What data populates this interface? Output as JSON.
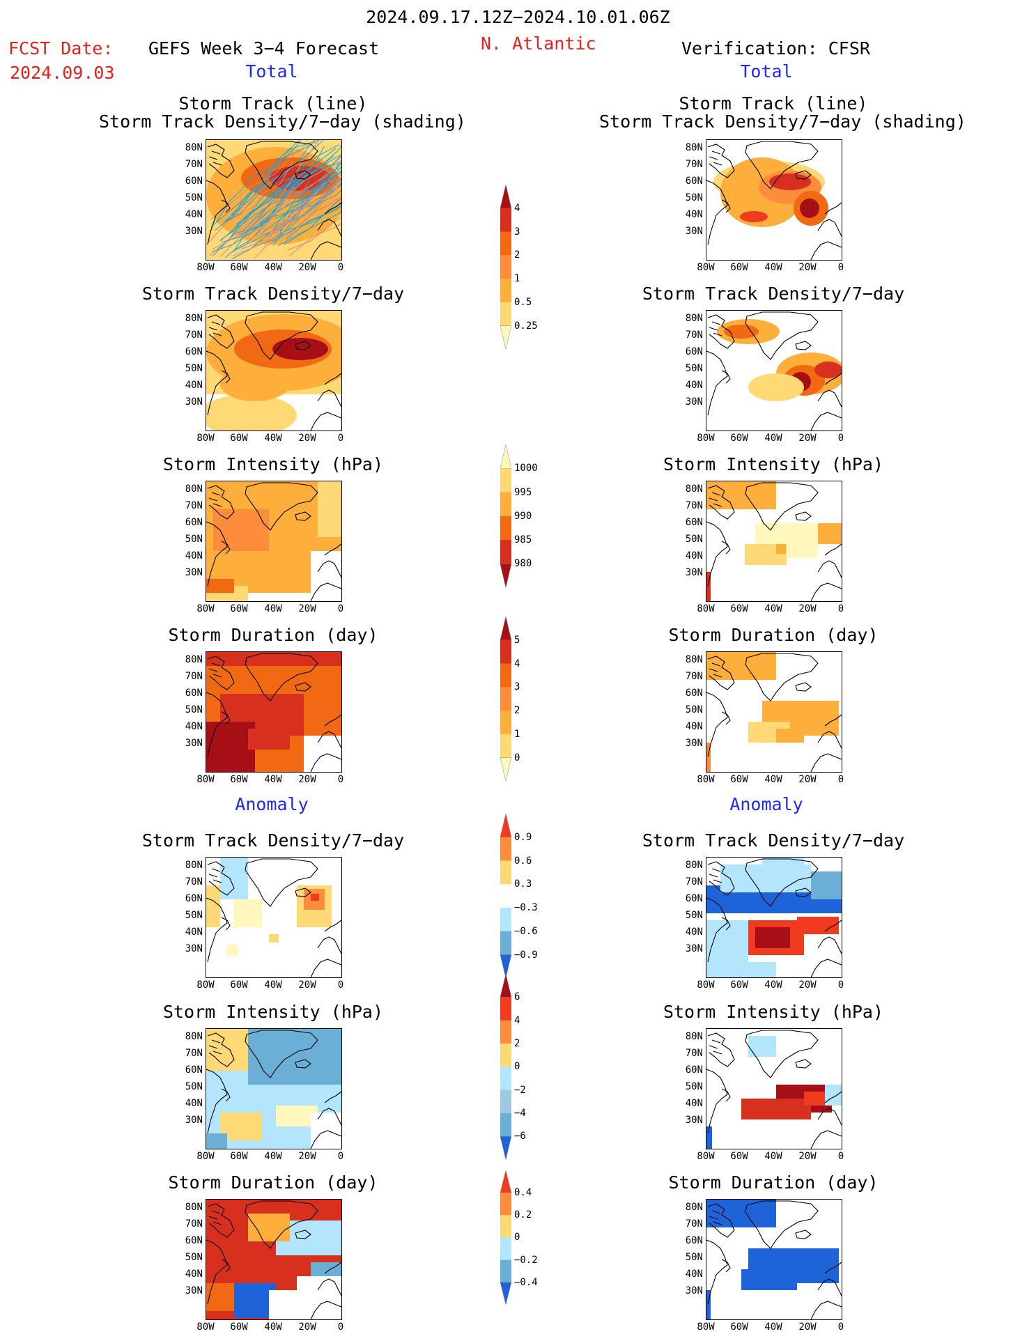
{
  "header": {
    "date_range": "2024.09.17.12Z−2024.10.01.06Z",
    "fcst_label": "FCST Date:",
    "fcst_date": "2024.09.03",
    "forecast_title": "GEFS Week 3−4 Forecast",
    "region": "N. Atlantic",
    "verification_title": "Verification: CFSR"
  },
  "sections": {
    "total": "Total",
    "anomaly": "Anomaly"
  },
  "axes": {
    "lat_ticks": [
      "80N",
      "70N",
      "60N",
      "50N",
      "40N",
      "30N"
    ],
    "lon_ticks": [
      "80W",
      "60W",
      "40W",
      "20W",
      "0"
    ]
  },
  "panel_titles": {
    "track_line": "Storm Track (line)",
    "track_shading": "Storm Track Density/7−day (shading)",
    "density": "Storm Track Density/7−day",
    "intensity": "Storm Intensity (hPa)",
    "duration": "Storm Duration (day)"
  },
  "colorbars": {
    "density": {
      "labels": [
        "4",
        "3",
        "2",
        "1",
        "0.5",
        "0.25"
      ],
      "colors": [
        "#a50f15",
        "#d7301f",
        "#f16913",
        "#fd8d3c",
        "#fdae3b",
        "#fed976",
        "#fff7bc"
      ]
    },
    "intensity": {
      "labels": [
        "1000",
        "995",
        "990",
        "985",
        "980"
      ],
      "colors": [
        "#fff7bc",
        "#fed976",
        "#fdae3b",
        "#f16913",
        "#d7301f",
        "#a50f15"
      ]
    },
    "duration": {
      "labels": [
        "5",
        "4",
        "3",
        "2",
        "1",
        "0"
      ],
      "colors": [
        "#a50f15",
        "#d7301f",
        "#f16913",
        "#fd8d3c",
        "#fdae3b",
        "#fed976",
        "#fff7bc"
      ]
    },
    "density_anom": {
      "labels": [
        "0.9",
        "0.6",
        "0.3",
        "−0.3",
        "−0.6",
        "−0.9"
      ],
      "colors": [
        "#f03b20",
        "#fd8d3c",
        "#fed976",
        "#ffffff",
        "#b3e5fc",
        "#6baed6",
        "#1e64d8"
      ]
    },
    "intensity_anom": {
      "labels": [
        "6",
        "4",
        "2",
        "0",
        "−2",
        "−4",
        "−6"
      ],
      "colors": [
        "#a50f15",
        "#f03b20",
        "#fd8d3c",
        "#fed976",
        "#b3e5fc",
        "#9ecae1",
        "#6baed6",
        "#1e64d8"
      ]
    },
    "duration_anom": {
      "labels": [
        "0.4",
        "0.2",
        "0",
        "−0.2",
        "−0.4"
      ],
      "colors": [
        "#f03b20",
        "#fd8d3c",
        "#fed976",
        "#b3e5fc",
        "#6baed6",
        "#1e64d8"
      ]
    }
  }
}
